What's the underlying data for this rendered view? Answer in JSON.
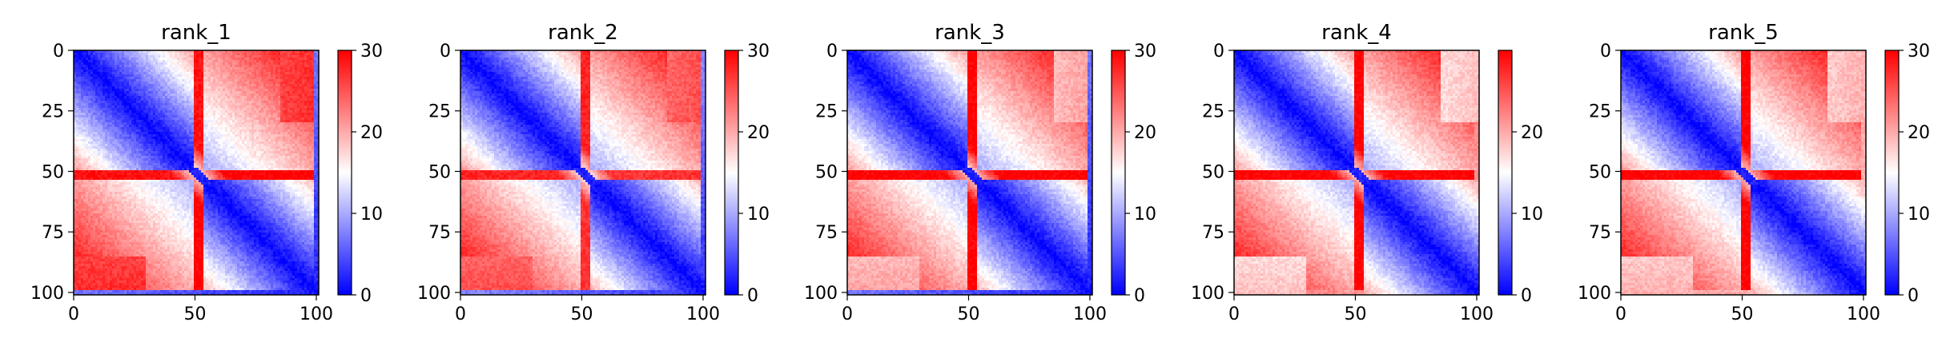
{
  "figure": {
    "background": "#ffffff"
  },
  "chart_data": [
    {
      "type": "heatmap",
      "title": "rank_1",
      "x_ticks": [
        "0",
        "50",
        "100"
      ],
      "y_ticks": [
        "0",
        "25",
        "50",
        "75",
        "100"
      ],
      "xlim": [
        0,
        101
      ],
      "ylim": [
        101,
        0
      ],
      "colorbar": {
        "ticks": [
          "0",
          "10",
          "20",
          "30"
        ],
        "range": [
          0,
          30
        ],
        "colormap": "bwr",
        "colors": [
          "#0000ff",
          "#ffffff",
          "#ff0000"
        ]
      },
      "pattern": {
        "break_index": 52,
        "n": 102,
        "band_value_left": 29,
        "band_value_right": 30,
        "far_corner_value": 30,
        "bottom_row_value": 2
      }
    },
    {
      "type": "heatmap",
      "title": "rank_2",
      "x_ticks": [
        "0",
        "50",
        "100"
      ],
      "y_ticks": [
        "0",
        "25",
        "50",
        "75",
        "100"
      ],
      "xlim": [
        0,
        101
      ],
      "ylim": [
        101,
        0
      ],
      "colorbar": {
        "ticks": [
          "0",
          "10",
          "20",
          "30"
        ],
        "range": [
          0,
          30
        ],
        "colormap": "bwr",
        "colors": [
          "#0000ff",
          "#ffffff",
          "#ff0000"
        ]
      },
      "pattern": {
        "break_index": 52,
        "n": 102,
        "band_value_left": 28,
        "band_value_right": 27,
        "far_corner_value": 28,
        "bottom_row_value": 3
      }
    },
    {
      "type": "heatmap",
      "title": "rank_3",
      "x_ticks": [
        "0",
        "50",
        "100"
      ],
      "y_ticks": [
        "0",
        "25",
        "50",
        "75",
        "100"
      ],
      "xlim": [
        0,
        101
      ],
      "ylim": [
        101,
        0
      ],
      "colorbar": {
        "ticks": [
          "0",
          "10",
          "20",
          "30"
        ],
        "range": [
          0,
          30
        ],
        "colormap": "bwr",
        "colors": [
          "#0000ff",
          "#ffffff",
          "#ff0000"
        ]
      },
      "pattern": {
        "break_index": 52,
        "n": 102,
        "band_value_left": 30,
        "band_value_right": 30,
        "far_corner_value": 23,
        "bottom_row_value": 2
      }
    },
    {
      "type": "heatmap",
      "title": "rank_4",
      "x_ticks": [
        "0",
        "50",
        "100"
      ],
      "y_ticks": [
        "0",
        "25",
        "50",
        "75",
        "100"
      ],
      "xlim": [
        0,
        101
      ],
      "ylim": [
        101,
        0
      ],
      "colorbar": {
        "ticks": [
          "0",
          "10",
          "20"
        ],
        "range": [
          0,
          30
        ],
        "colormap": "bwr",
        "colors": [
          "#0000ff",
          "#ffffff",
          "#ff0000"
        ]
      },
      "pattern": {
        "break_index": 52,
        "n": 102,
        "band_value_left": 30,
        "band_value_right": 30,
        "far_corner_value": 21,
        "bottom_row_value": 22
      }
    },
    {
      "type": "heatmap",
      "title": "rank_5",
      "x_ticks": [
        "0",
        "50",
        "100"
      ],
      "y_ticks": [
        "0",
        "25",
        "50",
        "75",
        "100"
      ],
      "xlim": [
        0,
        101
      ],
      "ylim": [
        101,
        0
      ],
      "colorbar": {
        "ticks": [
          "0",
          "10",
          "20",
          "30"
        ],
        "range": [
          0,
          30
        ],
        "colormap": "bwr",
        "colors": [
          "#0000ff",
          "#ffffff",
          "#ff0000"
        ]
      },
      "pattern": {
        "break_index": 52,
        "n": 102,
        "band_value_left": 30,
        "band_value_right": 30,
        "far_corner_value": 22,
        "bottom_row_value": 20
      }
    }
  ]
}
